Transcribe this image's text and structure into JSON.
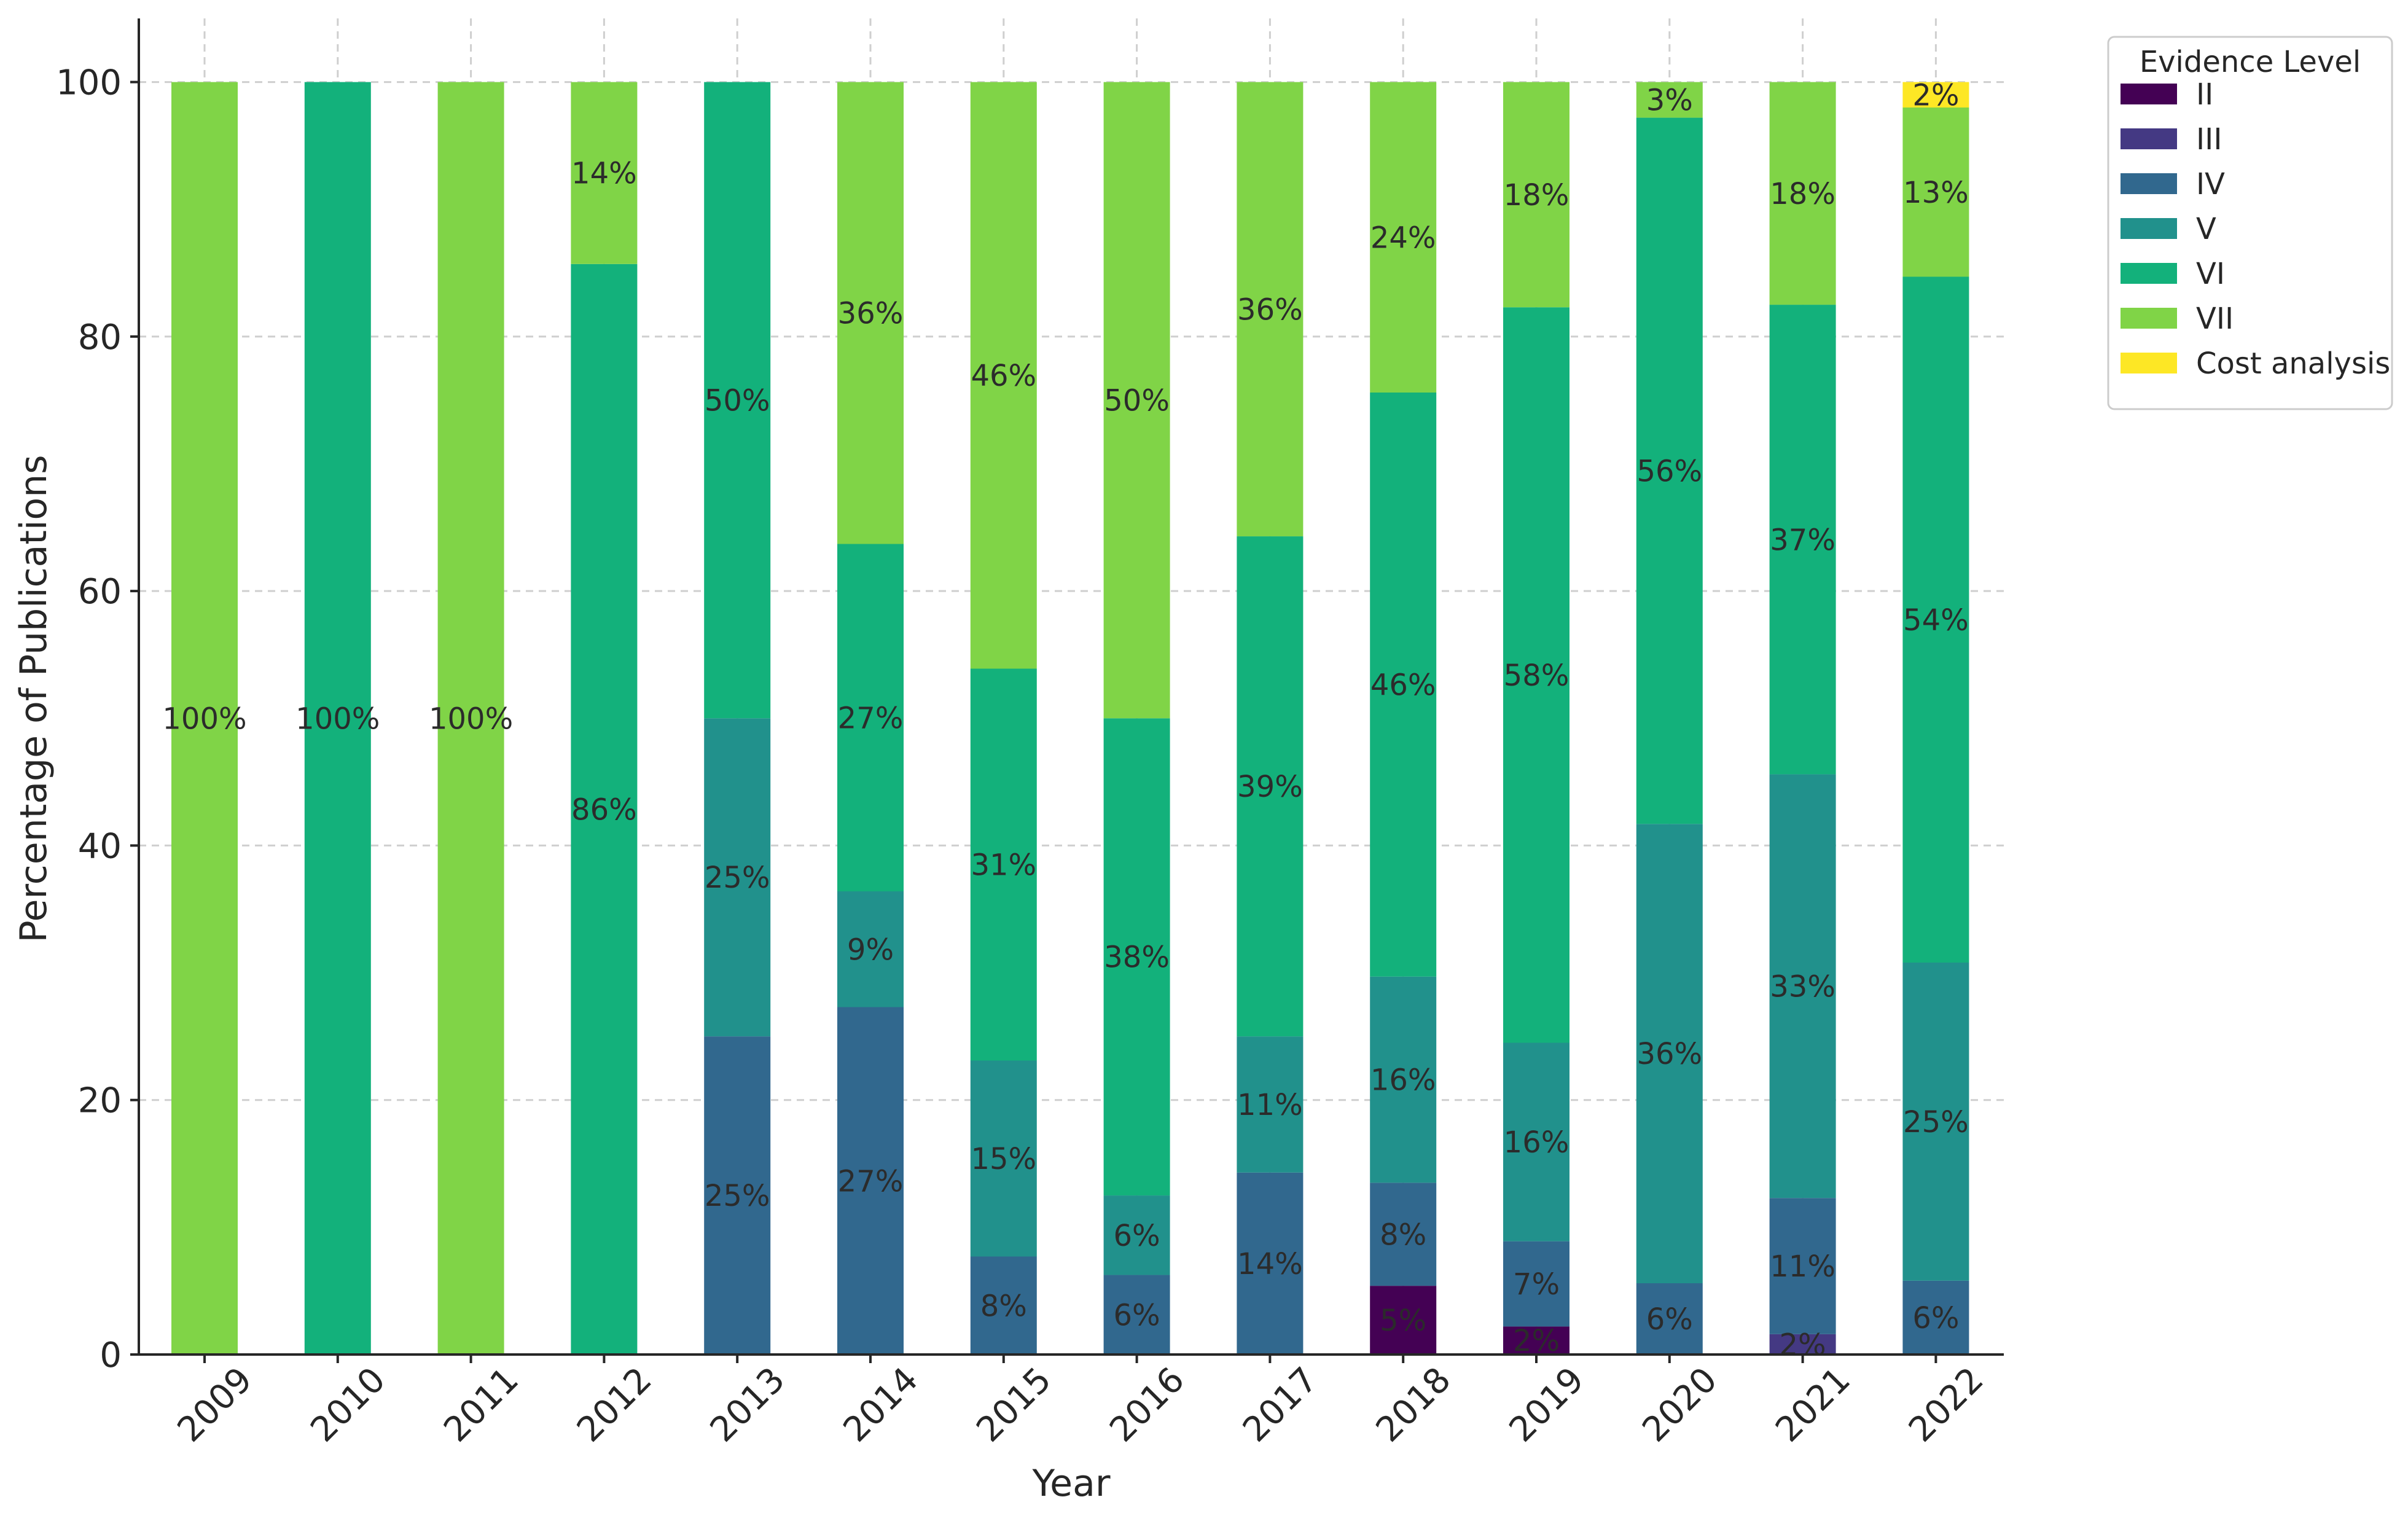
{
  "chart_data": {
    "type": "bar",
    "stacked": true,
    "title": "",
    "xlabel": "Year",
    "ylabel": "Percentage of Publications",
    "ylim": [
      0,
      105
    ],
    "yticks": [
      0,
      20,
      40,
      60,
      80,
      100
    ],
    "grid": true,
    "legend": {
      "title": "Evidence Level",
      "placement": "top-right outside"
    },
    "categories": [
      "2009",
      "2010",
      "2011",
      "2012",
      "2013",
      "2014",
      "2015",
      "2016",
      "2017",
      "2018",
      "2019",
      "2020",
      "2021",
      "2022"
    ],
    "series": [
      {
        "name": "II",
        "color": "#440154",
        "values": [
          0,
          0,
          0,
          0,
          0,
          0,
          0,
          0,
          0,
          5.4,
          2.2,
          0,
          0,
          0
        ],
        "labels": [
          "",
          "",
          "",
          "",
          "",
          "",
          "",
          "",
          "",
          "5%",
          "2%",
          "",
          "",
          ""
        ]
      },
      {
        "name": "III",
        "color": "#443983",
        "values": [
          0,
          0,
          0,
          0,
          0,
          0,
          0,
          0,
          0,
          0,
          0,
          0,
          1.6,
          0
        ],
        "labels": [
          "",
          "",
          "",
          "",
          "",
          "",
          "",
          "",
          "",
          "",
          "",
          "",
          "2%",
          ""
        ]
      },
      {
        "name": "IV",
        "color": "#31688e",
        "values": [
          0,
          0,
          0,
          0,
          25,
          27.3,
          7.7,
          6.25,
          14.3,
          8.1,
          6.7,
          5.6,
          10.7,
          5.8
        ],
        "labels": [
          "",
          "",
          "",
          "",
          "25%",
          "27%",
          "8%",
          "6%",
          "14%",
          "8%",
          "7%",
          "6%",
          "11%",
          "6%"
        ]
      },
      {
        "name": "V",
        "color": "#21918c",
        "values": [
          0,
          0,
          0,
          0,
          25,
          9.1,
          15.4,
          6.25,
          10.7,
          16.2,
          15.6,
          36.1,
          33.3,
          25.0
        ],
        "labels": [
          "",
          "",
          "",
          "",
          "25%",
          "9%",
          "15%",
          "6%",
          "11%",
          "16%",
          "16%",
          "36%",
          "33%",
          "25%"
        ]
      },
      {
        "name": "VI",
        "color": "#13b17b",
        "values": [
          0,
          100,
          0,
          85.7,
          50,
          27.3,
          30.8,
          37.5,
          39.3,
          45.9,
          57.8,
          55.5,
          36.9,
          53.9
        ],
        "labels": [
          "",
          "100%",
          "",
          "86%",
          "50%",
          "27%",
          "31%",
          "38%",
          "39%",
          "46%",
          "58%",
          "56%",
          "37%",
          "54%"
        ]
      },
      {
        "name": "VII",
        "color": "#80d447",
        "values": [
          100,
          0,
          100,
          14.3,
          0,
          36.3,
          46.1,
          50,
          35.7,
          24.4,
          17.7,
          2.8,
          17.5,
          13.3
        ],
        "labels": [
          "100%",
          "",
          "100%",
          "14%",
          "",
          "36%",
          "46%",
          "50%",
          "36%",
          "24%",
          "18%",
          "3%",
          "18%",
          "13%"
        ]
      },
      {
        "name": "Cost analysis",
        "color": "#fde725",
        "values": [
          0,
          0,
          0,
          0,
          0,
          0,
          0,
          0,
          0,
          0,
          0,
          0,
          0,
          2.0
        ],
        "labels": [
          "",
          "",
          "",
          "",
          "",
          "",
          "",
          "",
          "",
          "",
          "",
          "",
          "",
          "2%"
        ]
      }
    ]
  }
}
